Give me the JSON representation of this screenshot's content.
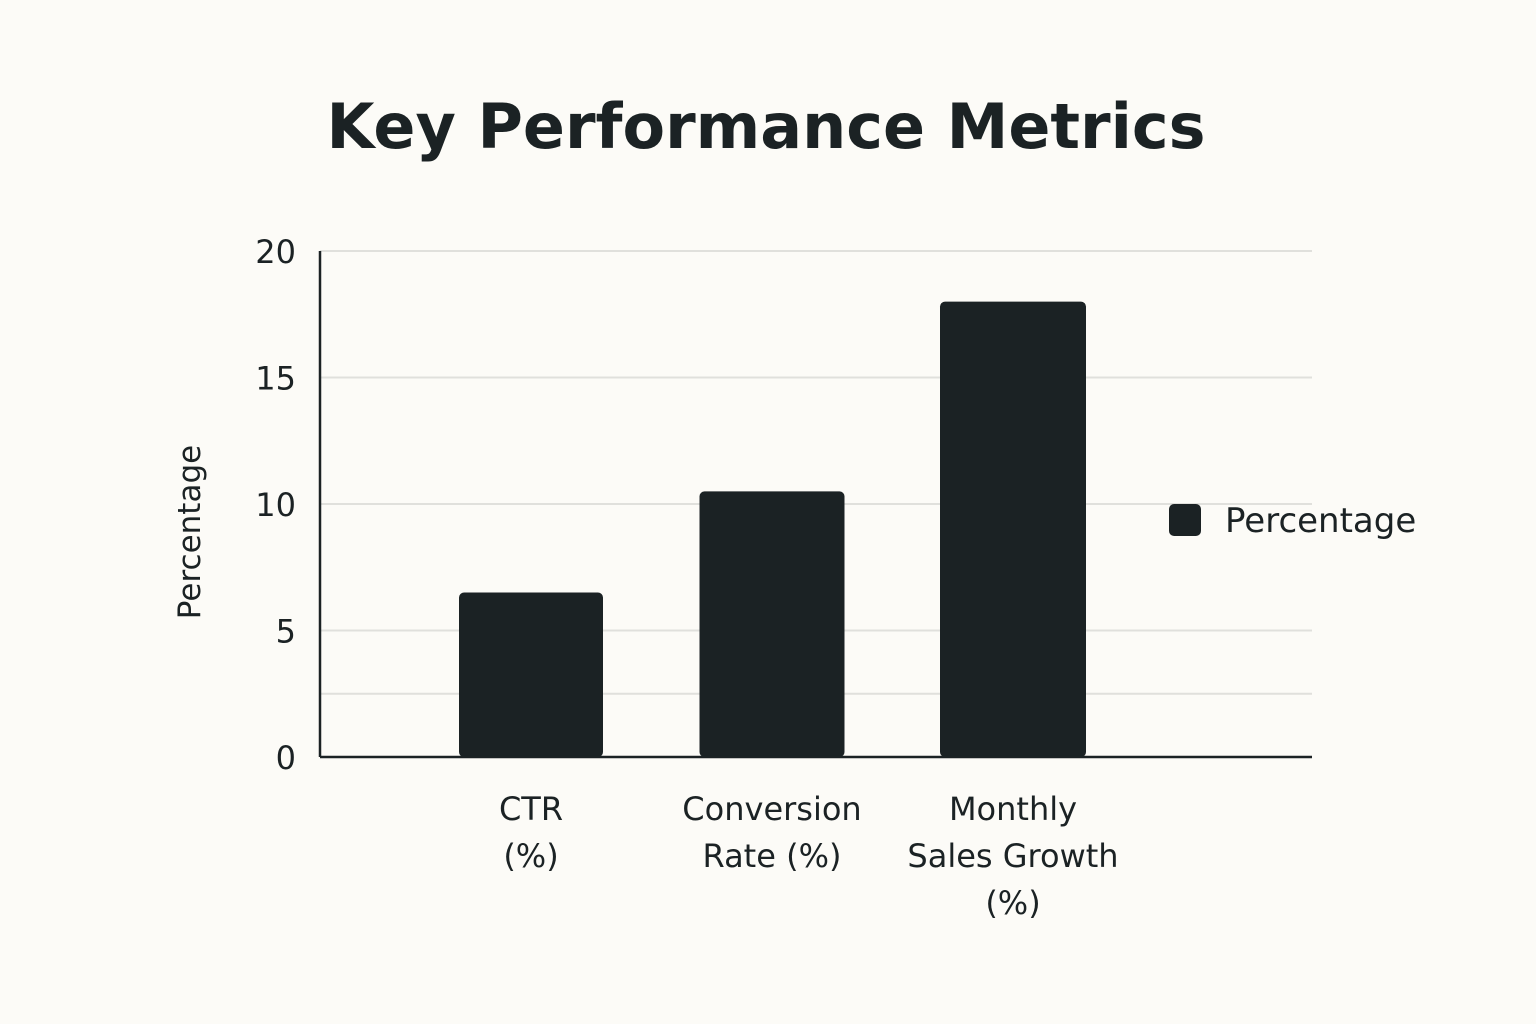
{
  "chart_data": {
    "type": "bar",
    "title": "Key Performance Metrics",
    "xlabel": "",
    "ylabel": "Percentage",
    "categories": [
      [
        "CTR",
        "(%)"
      ],
      [
        "Conversion",
        "Rate (%)"
      ],
      [
        "Monthly",
        "Sales Growth",
        "(%)"
      ]
    ],
    "series": [
      {
        "name": "Percentage",
        "values": [
          6.5,
          10.5,
          18
        ]
      }
    ],
    "ylim": [
      0,
      20
    ],
    "yticks": [
      0,
      5,
      10,
      15,
      20
    ],
    "gridlines": [
      0,
      5,
      10,
      15,
      20
    ],
    "grid": true,
    "legend": "right",
    "colors": {
      "bar": "#1b2224",
      "grid": "#e0e0dc",
      "axis": "#1b2224",
      "text": "#1b2224",
      "background": "#fcfbf7"
    }
  }
}
